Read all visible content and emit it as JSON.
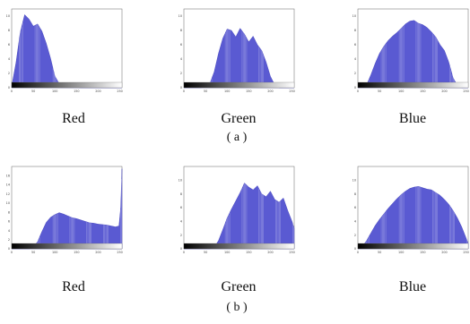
{
  "figure": {
    "row_a": {
      "label": "( a )"
    },
    "row_b": {
      "label": "( b )"
    }
  },
  "chart_data": [
    {
      "id": "a-red",
      "type": "area",
      "caption": "Red",
      "color": "#5a5ad2",
      "xlim": [
        0,
        255
      ],
      "ylim": [
        0,
        11
      ],
      "x": [
        0,
        10,
        20,
        30,
        40,
        50,
        60,
        70,
        80,
        90,
        100,
        110,
        120,
        130,
        140,
        150,
        160,
        170,
        180,
        190,
        200,
        210,
        220,
        230,
        240,
        250,
        255
      ],
      "values": [
        0.2,
        3.5,
        7.8,
        10.2,
        9.6,
        8.6,
        8.9,
        7.9,
        6.2,
        4.1,
        1.6,
        0.6,
        0.3,
        0.2,
        0.1,
        0.05,
        0,
        0,
        0,
        0,
        0,
        0,
        0,
        0,
        0,
        0,
        0
      ],
      "xticks": [
        "0",
        "50",
        "100",
        "150",
        "200",
        "250"
      ],
      "yticks": [
        "0",
        "2",
        "4",
        "6",
        "8",
        "10"
      ]
    },
    {
      "id": "a-green",
      "type": "area",
      "caption": "Green",
      "color": "#5a5ad2",
      "xlim": [
        0,
        255
      ],
      "ylim": [
        0,
        11
      ],
      "x": [
        0,
        20,
        40,
        60,
        70,
        80,
        90,
        100,
        110,
        120,
        130,
        140,
        150,
        160,
        170,
        180,
        190,
        200,
        210,
        220,
        230,
        240,
        255
      ],
      "values": [
        0,
        0,
        0,
        0.6,
        2.2,
        4.8,
        6.9,
        8.2,
        8.0,
        7.1,
        8.3,
        7.5,
        6.4,
        7.2,
        6.0,
        5.2,
        3.6,
        1.6,
        0.4,
        0,
        0,
        0,
        0
      ],
      "xticks": [
        "0",
        "50",
        "100",
        "150",
        "200",
        "250"
      ],
      "yticks": [
        "0",
        "2",
        "4",
        "6",
        "8",
        "10"
      ]
    },
    {
      "id": "a-blue",
      "type": "area",
      "caption": "Blue",
      "color": "#5a5ad2",
      "xlim": [
        0,
        255
      ],
      "ylim": [
        0,
        11
      ],
      "x": [
        0,
        20,
        30,
        40,
        50,
        60,
        70,
        80,
        90,
        100,
        110,
        120,
        130,
        140,
        150,
        160,
        170,
        180,
        190,
        200,
        210,
        220,
        230,
        240,
        255
      ],
      "values": [
        0,
        0.4,
        1.8,
        3.4,
        4.8,
        5.8,
        6.6,
        7.2,
        7.7,
        8.3,
        8.9,
        9.3,
        9.4,
        9.0,
        8.8,
        8.4,
        7.8,
        7.1,
        6.0,
        5.2,
        3.6,
        1.4,
        0.3,
        0,
        0
      ],
      "xticks": [
        "0",
        "50",
        "100",
        "150",
        "200",
        "250"
      ],
      "yticks": [
        "0",
        "2",
        "4",
        "6",
        "8",
        "10"
      ]
    },
    {
      "id": "b-red",
      "type": "area",
      "caption": "Red",
      "color": "#5a5ad2",
      "xlim": [
        0,
        255
      ],
      "ylim": [
        0,
        18
      ],
      "x": [
        0,
        20,
        40,
        50,
        60,
        70,
        80,
        90,
        100,
        110,
        120,
        130,
        140,
        150,
        160,
        170,
        180,
        190,
        200,
        210,
        220,
        230,
        240,
        248,
        252,
        255
      ],
      "values": [
        0,
        0,
        0,
        0.3,
        1.6,
        3.8,
        5.8,
        6.9,
        7.5,
        7.9,
        7.6,
        7.2,
        6.8,
        6.6,
        6.3,
        6.0,
        5.7,
        5.6,
        5.4,
        5.3,
        5.2,
        5.0,
        4.8,
        5.0,
        9.0,
        17.5
      ],
      "xticks": [
        "0",
        "50",
        "100",
        "150",
        "200",
        "250"
      ],
      "yticks": [
        "0",
        "2",
        "4",
        "6",
        "8",
        "10",
        "12",
        "14",
        "16"
      ]
    },
    {
      "id": "b-green",
      "type": "area",
      "caption": "Green",
      "color": "#5a5ad2",
      "xlim": [
        0,
        255
      ],
      "ylim": [
        0,
        12
      ],
      "x": [
        0,
        20,
        40,
        60,
        70,
        80,
        90,
        100,
        110,
        120,
        130,
        140,
        150,
        160,
        170,
        180,
        190,
        200,
        210,
        220,
        230,
        240,
        250,
        255
      ],
      "values": [
        0,
        0,
        0,
        0,
        0.2,
        1.2,
        2.8,
        4.5,
        5.8,
        7.0,
        8.2,
        9.6,
        9.0,
        8.6,
        9.2,
        8.0,
        7.6,
        8.4,
        7.2,
        6.8,
        7.4,
        5.6,
        4.0,
        3.0
      ],
      "xticks": [
        "0",
        "50",
        "100",
        "150",
        "200",
        "250"
      ],
      "yticks": [
        "0",
        "2",
        "4",
        "6",
        "8",
        "10"
      ]
    },
    {
      "id": "b-blue",
      "type": "area",
      "caption": "Blue",
      "color": "#5a5ad2",
      "xlim": [
        0,
        255
      ],
      "ylim": [
        0,
        12
      ],
      "x": [
        0,
        10,
        20,
        30,
        40,
        50,
        60,
        70,
        80,
        90,
        100,
        110,
        120,
        130,
        140,
        150,
        160,
        170,
        180,
        190,
        200,
        210,
        220,
        230,
        240,
        250,
        255
      ],
      "values": [
        0,
        0.3,
        1.2,
        2.3,
        3.4,
        4.3,
        5.1,
        5.9,
        6.6,
        7.3,
        7.9,
        8.4,
        8.8,
        9.0,
        9.1,
        8.9,
        8.7,
        8.6,
        8.2,
        7.8,
        7.2,
        6.5,
        5.6,
        4.5,
        3.2,
        1.6,
        0.8
      ],
      "xticks": [
        "0",
        "50",
        "100",
        "150",
        "200",
        "250"
      ],
      "yticks": [
        "0",
        "2",
        "4",
        "6",
        "8",
        "10"
      ]
    }
  ]
}
